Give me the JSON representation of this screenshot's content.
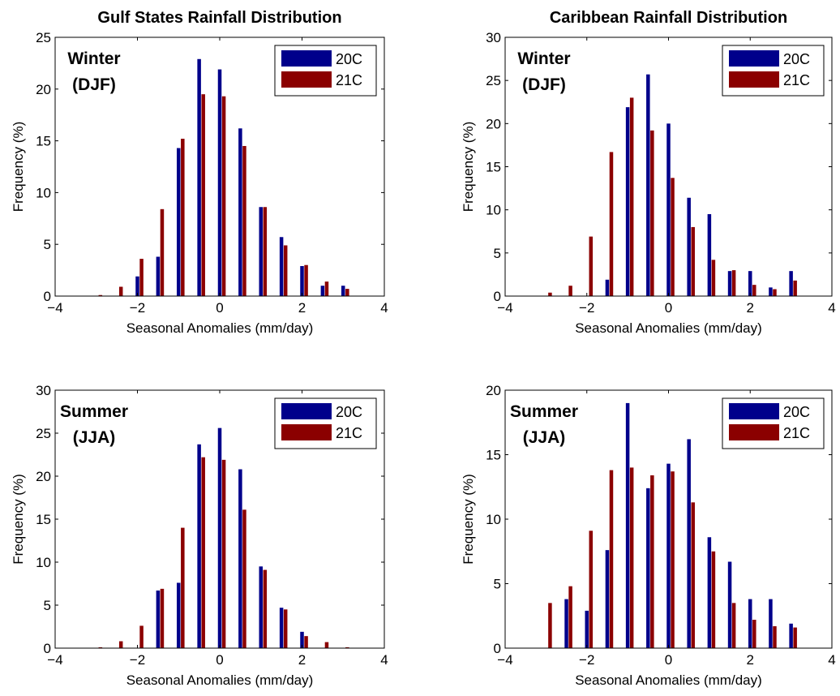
{
  "colors": {
    "series_20C": "#00008b",
    "series_21C": "#8b0000",
    "axis": "#000000",
    "background": "#ffffff"
  },
  "chart_data": [
    {
      "type": "bar",
      "title": "Gulf States Rainfall Distribution",
      "annotation": [
        "Winter",
        "(DJF)"
      ],
      "xlabel": "Seasonal Anomalies (mm/day)",
      "ylabel": "Frequency (%)",
      "xlim": [
        -4,
        4
      ],
      "ylim": [
        0,
        25
      ],
      "xticks": [
        -4,
        -2,
        0,
        2,
        4
      ],
      "yticks": [
        0,
        5,
        10,
        15,
        20,
        25
      ],
      "legend_position": "top-right",
      "grid": false,
      "series": [
        {
          "name": "20C",
          "color": "#00008b",
          "x": [
            -2.0,
            -1.5,
            -1.0,
            -0.5,
            0.0,
            0.5,
            1.0,
            1.5,
            2.0,
            2.5,
            3.0
          ],
          "values": [
            1.9,
            3.8,
            14.3,
            22.9,
            21.9,
            16.2,
            8.6,
            5.7,
            2.9,
            1.0,
            1.0
          ]
        },
        {
          "name": "21C",
          "color": "#8b0000",
          "x": [
            -2.9,
            -2.4,
            -1.9,
            -1.4,
            -0.9,
            -0.4,
            0.1,
            0.6,
            1.1,
            1.6,
            2.1,
            2.6,
            3.1
          ],
          "values": [
            0.1,
            0.9,
            3.6,
            8.4,
            15.2,
            19.5,
            19.3,
            14.5,
            8.6,
            4.9,
            3.0,
            1.4,
            0.7
          ]
        }
      ]
    },
    {
      "type": "bar",
      "title": "Caribbean Rainfall Distribution",
      "annotation": [
        "Winter",
        "(DJF)"
      ],
      "xlabel": "Seasonal Anomalies (mm/day)",
      "ylabel": "Frequency (%)",
      "xlim": [
        -4,
        4
      ],
      "ylim": [
        0,
        30
      ],
      "xticks": [
        -4,
        -2,
        0,
        2,
        4
      ],
      "yticks": [
        0,
        5,
        10,
        15,
        20,
        25,
        30
      ],
      "legend_position": "top-right",
      "grid": false,
      "series": [
        {
          "name": "20C",
          "color": "#00008b",
          "x": [
            -1.5,
            -1.0,
            -0.5,
            0.0,
            0.5,
            1.0,
            1.5,
            2.0,
            2.5,
            3.0
          ],
          "values": [
            1.9,
            21.9,
            25.7,
            20.0,
            11.4,
            9.5,
            2.9,
            2.9,
            1.0,
            2.9
          ]
        },
        {
          "name": "21C",
          "color": "#8b0000",
          "x": [
            -2.9,
            -2.4,
            -1.9,
            -1.4,
            -0.9,
            -0.4,
            0.1,
            0.6,
            1.1,
            1.6,
            2.1,
            2.6,
            3.1
          ],
          "values": [
            0.4,
            1.2,
            6.9,
            16.7,
            23.0,
            19.2,
            13.7,
            8.0,
            4.2,
            3.0,
            1.3,
            0.8,
            1.8
          ]
        }
      ]
    },
    {
      "type": "bar",
      "title": "",
      "annotation": [
        "Summer",
        "(JJA)"
      ],
      "xlabel": "Seasonal Anomalies (mm/day)",
      "ylabel": "Frequency (%)",
      "xlim": [
        -4,
        4
      ],
      "ylim": [
        0,
        30
      ],
      "xticks": [
        -4,
        -2,
        0,
        2,
        4
      ],
      "yticks": [
        0,
        5,
        10,
        15,
        20,
        25,
        30
      ],
      "legend_position": "top-right",
      "grid": false,
      "series": [
        {
          "name": "20C",
          "color": "#00008b",
          "x": [
            -1.5,
            -1.0,
            -0.5,
            0.0,
            0.5,
            1.0,
            1.5,
            2.0
          ],
          "values": [
            6.7,
            7.6,
            23.7,
            25.6,
            20.8,
            9.5,
            4.7,
            1.9
          ]
        },
        {
          "name": "21C",
          "color": "#8b0000",
          "x": [
            -2.9,
            -2.4,
            -1.9,
            -1.4,
            -0.9,
            -0.4,
            0.1,
            0.6,
            1.1,
            1.6,
            2.1,
            2.6,
            3.1
          ],
          "values": [
            0.1,
            0.8,
            2.6,
            6.9,
            14.0,
            22.2,
            21.9,
            16.1,
            9.1,
            4.5,
            1.4,
            0.7,
            0.1
          ]
        }
      ]
    },
    {
      "type": "bar",
      "title": "",
      "annotation": [
        "Summer",
        "(JJA)"
      ],
      "xlabel": "Seasonal Anomalies (mm/day)",
      "ylabel": "Frequency (%)",
      "xlim": [
        -4,
        4
      ],
      "ylim": [
        0,
        20
      ],
      "xticks": [
        -4,
        -2,
        0,
        2,
        4
      ],
      "yticks": [
        0,
        5,
        10,
        15,
        20
      ],
      "legend_position": "top-right",
      "grid": false,
      "series": [
        {
          "name": "20C",
          "color": "#00008b",
          "x": [
            -2.5,
            -2.0,
            -1.5,
            -1.0,
            -0.5,
            0.0,
            0.5,
            1.0,
            1.5,
            2.0,
            2.5,
            3.0
          ],
          "values": [
            3.8,
            2.9,
            7.6,
            19.0,
            12.4,
            14.3,
            16.2,
            8.6,
            6.7,
            3.8,
            3.8,
            1.9
          ]
        },
        {
          "name": "21C",
          "color": "#8b0000",
          "x": [
            -2.9,
            -2.4,
            -1.9,
            -1.4,
            -0.9,
            -0.4,
            0.1,
            0.6,
            1.1,
            1.6,
            2.1,
            2.6,
            3.1
          ],
          "values": [
            3.5,
            4.8,
            9.1,
            13.8,
            14.0,
            13.4,
            13.7,
            11.3,
            7.5,
            3.5,
            2.2,
            1.7,
            1.6
          ]
        }
      ]
    }
  ]
}
